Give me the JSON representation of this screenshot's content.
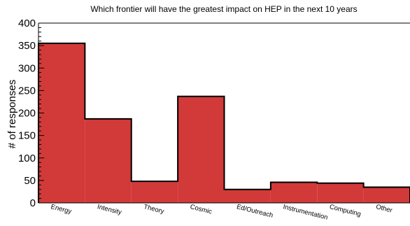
{
  "chart_data": {
    "type": "bar",
    "title": "Which frontier will have the greatest impact on HEP in the next 10 years",
    "xlabel": "",
    "ylabel": "# of responses",
    "categories": [
      "Energy",
      "Intensity",
      "Theory",
      "Cosmic",
      "Ed/Outreach",
      "Instrumentation",
      "Computing",
      "Other"
    ],
    "values": [
      355,
      187,
      48,
      237,
      30,
      46,
      44,
      35
    ],
    "ylim": [
      0,
      400
    ],
    "yticks": [
      "0",
      "50",
      "100",
      "150",
      "200",
      "250",
      "300",
      "350",
      "400"
    ],
    "bar_color": "#d13a39",
    "edge_color": "#000000",
    "grid": false
  }
}
